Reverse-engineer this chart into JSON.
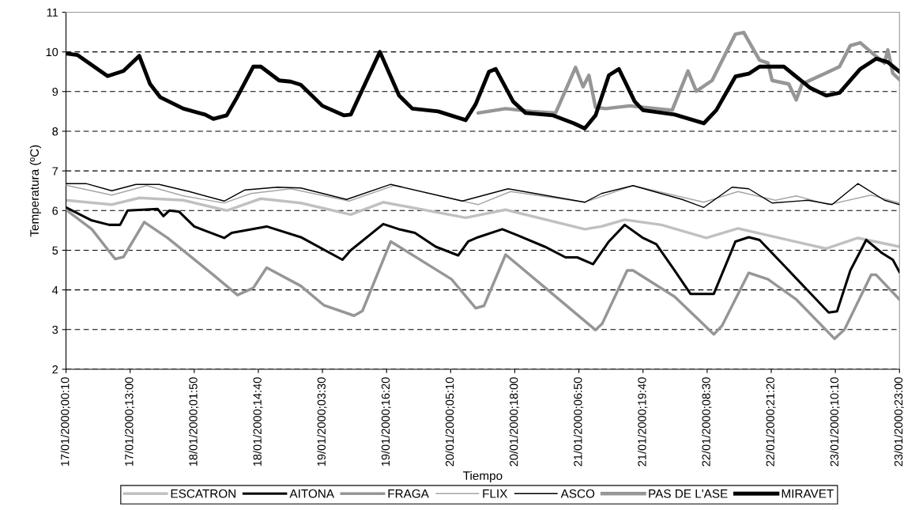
{
  "chart_data": {
    "type": "line",
    "xlabel": "Tiempo",
    "ylabel": "Temperatura (ºC)",
    "ylim": [
      2,
      11
    ],
    "yticks": [
      2,
      3,
      4,
      5,
      6,
      7,
      8,
      9,
      10,
      11
    ],
    "xlim": [
      "2000-01-17T00:10",
      "2000-01-23T23:00"
    ],
    "xticks": [
      {
        "value": "2000-01-17T00:10",
        "label": "17/01/2000;00:10"
      },
      {
        "value": "2000-01-17T13:00",
        "label": "17/01/2000;13:00"
      },
      {
        "value": "2000-01-18T01:50",
        "label": "18/01/2000;01:50"
      },
      {
        "value": "2000-01-18T14:40",
        "label": "18/01/2000;14:40"
      },
      {
        "value": "2000-01-19T03:30",
        "label": "19/01/2000;03:30"
      },
      {
        "value": "2000-01-19T16:20",
        "label": "19/01/2000;16:20"
      },
      {
        "value": "2000-01-20T05:10",
        "label": "20/01/2000;05:10"
      },
      {
        "value": "2000-01-20T18:00",
        "label": "20/01/2000;18:00"
      },
      {
        "value": "2000-01-21T06:50",
        "label": "21/01/2000;06:50"
      },
      {
        "value": "2000-01-21T19:40",
        "label": "21/01/2000;19:40"
      },
      {
        "value": "2000-01-22T08:30",
        "label": "22/01/2000;08:30"
      },
      {
        "value": "2000-01-22T21:20",
        "label": "22/01/2000;21:20"
      },
      {
        "value": "2000-01-23T10:10",
        "label": "23/01/2000;10:10"
      },
      {
        "value": "2000-01-23T23:00",
        "label": "23/01/2000;23:00"
      }
    ],
    "grid": "y",
    "legend": "bottom",
    "marker": "none",
    "line_style": "solid",
    "series": [
      {
        "name": "ESCATRON",
        "color": "#c0c0c0",
        "x": [
          "2000-01-17T00:10",
          "2000-01-17T09:20",
          "2000-01-17T14:50",
          "2000-01-17T23:40",
          "2000-01-18T08:20",
          "2000-01-18T15:10",
          "2000-01-18T23:10",
          "2000-01-19T09:10",
          "2000-01-19T15:40",
          "2000-01-20T08:10",
          "2000-01-20T16:10",
          "2000-01-21T08:00",
          "2000-01-21T11:20",
          "2000-01-21T16:00",
          "2000-01-21T23:20",
          "2000-01-22T08:20",
          "2000-01-22T14:40",
          "2000-01-23T08:20",
          "2000-01-23T14:40",
          "2000-01-23T23:00"
        ],
        "values": [
          6.26,
          6.15,
          6.32,
          6.26,
          6.0,
          6.3,
          6.19,
          5.9,
          6.21,
          5.82,
          6.02,
          5.53,
          5.6,
          5.77,
          5.64,
          5.31,
          5.55,
          5.04,
          5.31,
          5.09
        ]
      },
      {
        "name": "AITONA",
        "color": "#000000",
        "x": [
          "2000-01-17T00:10",
          "2000-01-17T05:20",
          "2000-01-17T08:50",
          "2000-01-17T11:00",
          "2000-01-17T12:30",
          "2000-01-17T18:30",
          "2000-01-17T19:40",
          "2000-01-17T20:50",
          "2000-01-17T22:50",
          "2000-01-18T01:50",
          "2000-01-18T07:50",
          "2000-01-18T09:20",
          "2000-01-18T16:20",
          "2000-01-18T23:10",
          "2000-01-19T07:30",
          "2000-01-19T09:10",
          "2000-01-19T15:40",
          "2000-01-19T18:50",
          "2000-01-19T22:00",
          "2000-01-20T02:10",
          "2000-01-20T06:40",
          "2000-01-20T08:40",
          "2000-01-20T10:40",
          "2000-01-20T15:30",
          "2000-01-20T18:40",
          "2000-01-21T00:00",
          "2000-01-21T04:10",
          "2000-01-21T06:30",
          "2000-01-21T09:40",
          "2000-01-21T12:50",
          "2000-01-21T16:00",
          "2000-01-21T19:40",
          "2000-01-21T22:20",
          "2000-01-22T02:00",
          "2000-01-22T05:10",
          "2000-01-22T09:50",
          "2000-01-22T14:10",
          "2000-01-22T16:50",
          "2000-01-22T19:00",
          "2000-01-22T23:10",
          "2000-01-23T08:50",
          "2000-01-23T10:30",
          "2000-01-23T13:10",
          "2000-01-23T16:20",
          "2000-01-23T19:30",
          "2000-01-23T21:40",
          "2000-01-23T23:00"
        ],
        "values": [
          6.08,
          5.75,
          5.64,
          5.64,
          6.0,
          6.04,
          5.86,
          6.0,
          5.97,
          5.6,
          5.31,
          5.44,
          5.6,
          5.33,
          4.76,
          5.0,
          5.66,
          5.53,
          5.44,
          5.09,
          4.87,
          5.22,
          5.33,
          5.53,
          5.37,
          5.09,
          4.82,
          4.82,
          4.65,
          5.22,
          5.64,
          5.31,
          5.15,
          4.49,
          3.9,
          3.9,
          5.22,
          5.33,
          5.26,
          4.71,
          3.43,
          3.46,
          4.49,
          5.26,
          4.93,
          4.76,
          4.45
        ]
      },
      {
        "name": "FRAGA",
        "color": "#969696",
        "x": [
          "2000-01-17T00:10",
          "2000-01-17T05:20",
          "2000-01-17T10:00",
          "2000-01-17T11:40",
          "2000-01-17T15:50",
          "2000-01-17T20:30",
          "2000-01-18T05:10",
          "2000-01-18T10:30",
          "2000-01-18T13:40",
          "2000-01-18T16:20",
          "2000-01-18T23:10",
          "2000-01-19T03:50",
          "2000-01-19T09:50",
          "2000-01-19T11:30",
          "2000-01-19T17:10",
          "2000-01-20T05:20",
          "2000-01-20T10:10",
          "2000-01-20T11:50",
          "2000-01-20T16:10",
          "2000-01-21T00:30",
          "2000-01-21T10:10",
          "2000-01-21T11:30",
          "2000-01-21T16:30",
          "2000-01-21T17:40",
          "2000-01-22T02:00",
          "2000-01-22T09:50",
          "2000-01-22T11:30",
          "2000-01-22T16:50",
          "2000-01-22T20:40",
          "2000-01-23T02:20",
          "2000-01-23T10:00",
          "2000-01-23T12:00",
          "2000-01-23T17:20",
          "2000-01-23T18:20",
          "2000-01-23T23:00"
        ],
        "values": [
          6.02,
          5.53,
          4.78,
          4.83,
          5.71,
          5.31,
          4.43,
          3.87,
          4.05,
          4.56,
          4.1,
          3.61,
          3.35,
          3.47,
          5.22,
          4.27,
          3.54,
          3.6,
          4.89,
          4.01,
          2.99,
          3.15,
          4.49,
          4.49,
          3.83,
          2.88,
          3.1,
          4.43,
          4.27,
          3.76,
          2.77,
          3.0,
          4.38,
          4.38,
          3.76
        ]
      },
      {
        "name": "FLIX",
        "color": "#a6a6a6",
        "x": [
          "2000-01-17T00:10",
          "2000-01-17T09:20",
          "2000-01-17T16:20",
          "2000-01-17T23:40",
          "2000-01-18T07:50",
          "2000-01-18T13:10",
          "2000-01-18T21:10",
          "2000-01-19T08:50",
          "2000-01-19T17:50",
          "2000-01-20T10:40",
          "2000-01-20T17:10",
          "2000-01-21T08:00",
          "2000-01-21T17:40",
          "2000-01-22T07:50",
          "2000-01-22T14:40",
          "2000-01-22T22:10",
          "2000-01-23T02:20",
          "2000-01-23T08:50",
          "2000-01-23T17:20",
          "2000-01-23T23:00"
        ],
        "values": [
          6.64,
          6.39,
          6.63,
          6.37,
          6.19,
          6.43,
          6.55,
          6.24,
          6.63,
          6.15,
          6.48,
          6.21,
          6.63,
          6.21,
          6.48,
          6.26,
          6.37,
          6.15,
          6.39,
          6.19
        ]
      },
      {
        "name": "ASCO",
        "color": "#000000",
        "x": [
          "2000-01-17T00:10",
          "2000-01-17T04:10",
          "2000-01-17T09:20",
          "2000-01-17T14:10",
          "2000-01-17T18:50",
          "2000-01-18T00:50",
          "2000-01-18T07:50",
          "2000-01-18T12:00",
          "2000-01-18T18:30",
          "2000-01-18T23:10",
          "2000-01-19T08:20",
          "2000-01-19T17:10",
          "2000-01-20T07:30",
          "2000-01-20T16:40",
          "2000-01-21T08:00",
          "2000-01-21T11:20",
          "2000-01-21T17:40",
          "2000-01-22T03:30",
          "2000-01-22T07:50",
          "2000-01-22T13:30",
          "2000-01-22T16:50",
          "2000-01-22T21:30",
          "2000-01-23T04:40",
          "2000-01-23T09:30",
          "2000-01-23T14:40",
          "2000-01-23T20:00",
          "2000-01-23T23:00"
        ],
        "values": [
          6.68,
          6.68,
          6.5,
          6.66,
          6.66,
          6.48,
          6.24,
          6.52,
          6.59,
          6.57,
          6.28,
          6.66,
          6.24,
          6.55,
          6.21,
          6.43,
          6.63,
          6.28,
          6.08,
          6.59,
          6.55,
          6.19,
          6.26,
          6.15,
          6.68,
          6.26,
          6.15
        ]
      },
      {
        "name": "PAS DE L'ASE",
        "color": "#969696",
        "x": [
          "2000-01-20T10:40",
          "2000-01-20T16:10",
          "2000-01-20T21:20",
          "2000-01-21T02:10",
          "2000-01-21T06:10",
          "2000-01-21T07:40",
          "2000-01-21T08:50",
          "2000-01-21T10:10",
          "2000-01-21T12:10",
          "2000-01-21T17:00",
          "2000-01-22T01:30",
          "2000-01-22T04:40",
          "2000-01-22T06:20",
          "2000-01-22T09:30",
          "2000-01-22T14:10",
          "2000-01-22T15:50",
          "2000-01-22T19:00",
          "2000-01-22T20:40",
          "2000-01-22T21:30",
          "2000-01-23T00:50",
          "2000-01-23T02:20",
          "2000-01-23T03:30",
          "2000-01-23T08:50",
          "2000-01-23T11:00",
          "2000-01-23T13:10",
          "2000-01-23T15:10",
          "2000-01-23T17:50",
          "2000-01-23T20:00",
          "2000-01-23T20:40",
          "2000-01-23T21:40",
          "2000-01-23T23:00"
        ],
        "values": [
          8.46,
          8.57,
          8.5,
          8.46,
          9.61,
          9.12,
          9.41,
          8.6,
          8.57,
          8.64,
          8.53,
          9.52,
          9.01,
          9.28,
          10.45,
          10.49,
          9.79,
          9.72,
          9.28,
          9.19,
          8.79,
          9.19,
          9.5,
          9.63,
          10.16,
          10.23,
          9.94,
          9.72,
          10.05,
          9.46,
          9.3
        ]
      },
      {
        "name": "MIRAVET",
        "color": "#000000",
        "x": [
          "2000-01-17T00:10",
          "2000-01-17T02:30",
          "2000-01-17T08:30",
          "2000-01-17T11:40",
          "2000-01-17T14:50",
          "2000-01-17T17:00",
          "2000-01-17T19:00",
          "2000-01-17T23:40",
          "2000-01-18T04:00",
          "2000-01-18T05:40",
          "2000-01-18T08:20",
          "2000-01-18T10:20",
          "2000-01-18T13:40",
          "2000-01-18T15:10",
          "2000-01-18T18:50",
          "2000-01-18T21:10",
          "2000-01-18T23:10",
          "2000-01-19T03:30",
          "2000-01-19T07:50",
          "2000-01-19T09:10",
          "2000-01-19T15:00",
          "2000-01-19T18:50",
          "2000-01-19T21:30",
          "2000-01-20T02:40",
          "2000-01-20T08:10",
          "2000-01-20T10:10",
          "2000-01-20T12:50",
          "2000-01-20T14:10",
          "2000-01-20T17:40",
          "2000-01-20T20:10",
          "2000-01-21T01:40",
          "2000-01-21T05:50",
          "2000-01-21T08:00",
          "2000-01-21T10:10",
          "2000-01-21T12:50",
          "2000-01-21T14:50",
          "2000-01-21T18:00",
          "2000-01-21T19:40",
          "2000-01-22T02:00",
          "2000-01-22T07:50",
          "2000-01-22T10:20",
          "2000-01-22T14:10",
          "2000-01-22T16:50",
          "2000-01-22T19:00",
          "2000-01-22T23:50",
          "2000-01-23T02:00",
          "2000-01-23T05:10",
          "2000-01-23T08:20",
          "2000-01-23T11:00",
          "2000-01-23T15:10",
          "2000-01-23T18:20",
          "2000-01-23T20:40",
          "2000-01-23T23:00"
        ],
        "values": [
          9.96,
          9.92,
          9.39,
          9.52,
          9.9,
          9.19,
          8.86,
          8.57,
          8.42,
          8.31,
          8.4,
          8.84,
          9.63,
          9.63,
          9.28,
          9.25,
          9.17,
          8.64,
          8.4,
          8.42,
          10.0,
          8.9,
          8.57,
          8.5,
          8.28,
          8.68,
          9.5,
          9.57,
          8.75,
          8.46,
          8.4,
          8.2,
          8.07,
          8.4,
          9.41,
          9.57,
          8.75,
          8.53,
          8.42,
          8.2,
          8.53,
          9.38,
          9.45,
          9.63,
          9.63,
          9.41,
          9.09,
          8.9,
          8.97,
          9.57,
          9.83,
          9.74,
          9.5
        ]
      }
    ]
  }
}
